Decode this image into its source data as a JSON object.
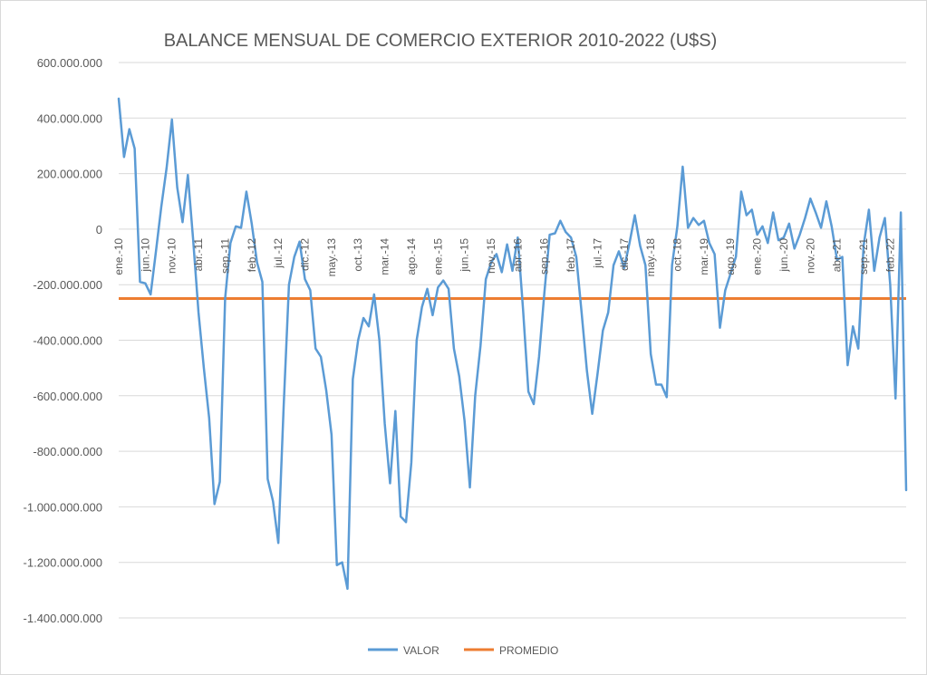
{
  "chart_data": {
    "type": "line",
    "title": "BALANCE MENSUAL DE COMERCIO EXTERIOR 2010-2022 (U$S)",
    "xlabel": "",
    "ylabel": "",
    "ylim": [
      -1400000000,
      600000000
    ],
    "y_ticks": [
      600000000,
      400000000,
      200000000,
      0,
      -200000000,
      -400000000,
      -600000000,
      -800000000,
      -1000000000,
      -1200000000,
      -1400000000
    ],
    "y_tick_labels": [
      "600.000.000",
      "400.000.000",
      "200.000.000",
      "0",
      "-200.000.000",
      "-400.000.000",
      "-600.000.000",
      "-800.000.000",
      "-1.000.000.000",
      "-1.200.000.000",
      "-1.400.000.000"
    ],
    "x_tick_labels": [
      "ene.-10",
      "jun.-10",
      "nov.-10",
      "abr.-11",
      "sep.-11",
      "feb.-12",
      "jul.-12",
      "dic.-12",
      "may.-13",
      "oct.-13",
      "mar.-14",
      "ago.-14",
      "ene.-15",
      "jun.-15",
      "nov.-15",
      "abr.-16",
      "sep.-16",
      "feb.-17",
      "jul.-17",
      "dic.-17",
      "may.-18",
      "oct.-18",
      "mar.-19",
      "ago.-19",
      "ene.-20",
      "jun.-20",
      "nov.-20",
      "abr.-21",
      "sep.-21",
      "feb.-22"
    ],
    "x_tick_every_months": 5,
    "grid": "horizontal",
    "legend_position": "bottom",
    "series": [
      {
        "name": "VALOR",
        "color": "#5b9bd5",
        "values": [
          470000000,
          260000000,
          360000000,
          290000000,
          -190000000,
          -195000000,
          -235000000,
          -80000000,
          80000000,
          220000000,
          395000000,
          150000000,
          25000000,
          195000000,
          -40000000,
          -300000000,
          -500000000,
          -680000000,
          -990000000,
          -910000000,
          -250000000,
          -50000000,
          10000000,
          5000000,
          135000000,
          20000000,
          -120000000,
          -190000000,
          -900000000,
          -980000000,
          -1130000000,
          -640000000,
          -200000000,
          -100000000,
          -45000000,
          -180000000,
          -220000000,
          -430000000,
          -460000000,
          -580000000,
          -740000000,
          -1210000000,
          -1200000000,
          -1295000000,
          -540000000,
          -400000000,
          -320000000,
          -350000000,
          -235000000,
          -400000000,
          -700000000,
          -915000000,
          -655000000,
          -1035000000,
          -1055000000,
          -840000000,
          -400000000,
          -280000000,
          -215000000,
          -310000000,
          -210000000,
          -185000000,
          -215000000,
          -430000000,
          -530000000,
          -690000000,
          -930000000,
          -600000000,
          -420000000,
          -180000000,
          -120000000,
          -90000000,
          -155000000,
          -55000000,
          -150000000,
          -30000000,
          -290000000,
          -585000000,
          -630000000,
          -460000000,
          -230000000,
          -20000000,
          -15000000,
          30000000,
          -10000000,
          -30000000,
          -100000000,
          -300000000,
          -510000000,
          -665000000,
          -520000000,
          -365000000,
          -300000000,
          -130000000,
          -80000000,
          -140000000,
          -50000000,
          50000000,
          -60000000,
          -130000000,
          -450000000,
          -560000000,
          -560000000,
          -605000000,
          -130000000,
          10000000,
          225000000,
          5000000,
          40000000,
          15000000,
          30000000,
          -50000000,
          -90000000,
          -355000000,
          -220000000,
          -160000000,
          -100000000,
          135000000,
          50000000,
          70000000,
          -20000000,
          10000000,
          -50000000,
          60000000,
          -40000000,
          -30000000,
          20000000,
          -70000000,
          -20000000,
          40000000,
          110000000,
          60000000,
          5000000,
          100000000,
          10000000,
          -110000000,
          -100000000,
          -490000000,
          -350000000,
          -430000000,
          -60000000,
          70000000,
          -150000000,
          -30000000,
          40000000,
          -200000000,
          -610000000,
          60000000,
          -940000000
        ]
      },
      {
        "name": "PROMEDIO",
        "color": "#ed7d31",
        "constant": -250000000
      }
    ]
  }
}
